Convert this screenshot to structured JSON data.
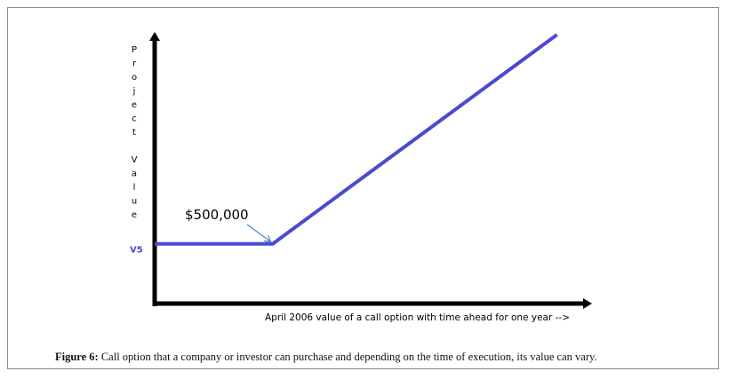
{
  "chart_data": {
    "type": "line",
    "title": "",
    "xlabel": "April 2006 value of a call option with time ahead for one year -->",
    "ylabel": "Project Value",
    "y_axis_label_chars": [
      "P",
      "r",
      "o",
      "j",
      "e",
      "c",
      "t",
      "",
      "V",
      "a",
      "l",
      "u",
      "e"
    ],
    "y_marker_label": "V5",
    "xlim": [
      0,
      10
    ],
    "ylim": [
      0,
      10
    ],
    "series": [
      {
        "x": [
          0,
          2.7,
          9.2
        ],
        "y": [
          2.2,
          2.2,
          9.9
        ]
      }
    ],
    "annotations": [
      {
        "text": "$500,000",
        "x": 2.7,
        "y": 2.2
      }
    ],
    "grid": false,
    "colors": {
      "line": "#4a4ad0",
      "axis": "#000000",
      "marker_label": "#4a4ad0"
    }
  },
  "caption": {
    "label": "Figure 6:",
    "text": " Call option that a company or investor can purchase and depending on the time of execution, its value can vary."
  }
}
